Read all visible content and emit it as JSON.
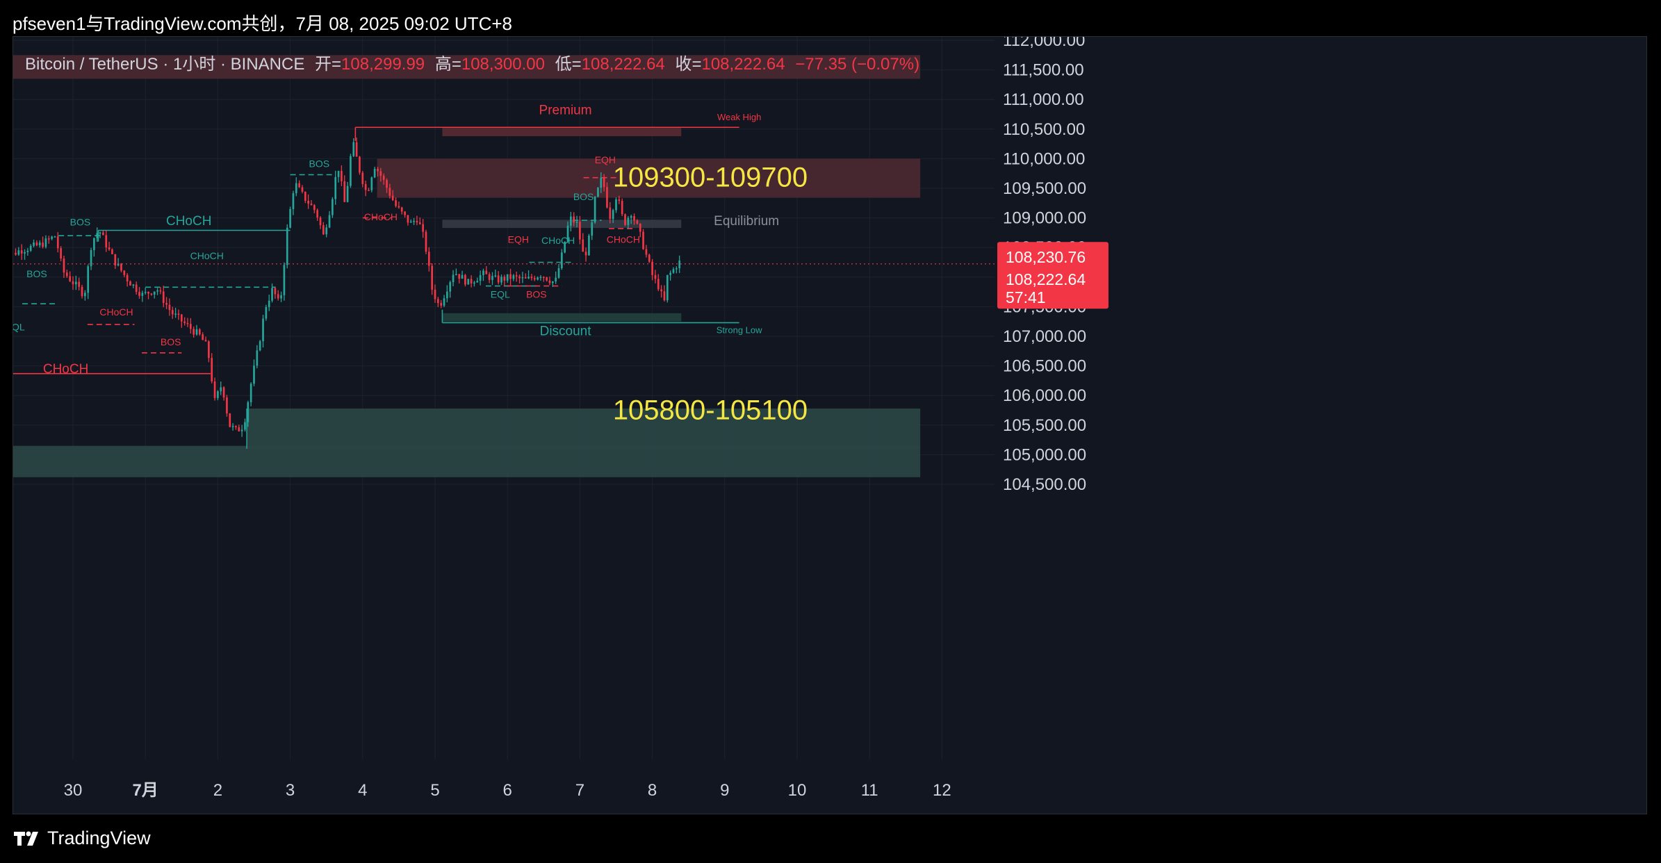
{
  "header": {
    "title": "pfseven1与TradingView.com共创，7月 08, 2025 09:02 UTC+8"
  },
  "legend": {
    "symbol": "Bitcoin / TetherUS · 1小时 · BINANCE",
    "open_label": "开=",
    "open": "108,299.99",
    "high_label": "高=",
    "high": "108,300.00",
    "low_label": "低=",
    "low": "108,222.64",
    "close_label": "收=",
    "close": "108,222.64",
    "change": "−77.35 (−0.07%)"
  },
  "footer": {
    "brand": "TradingView"
  },
  "colors": {
    "up": "#26a69a",
    "down": "#f23645",
    "background": "#121620",
    "supply_zone": "#5a2a33",
    "demand_zone": "#2c4a4a",
    "annotation_yellow": "#f5e642"
  },
  "chart_data": {
    "type": "candlestick",
    "title": "Bitcoin / TetherUS · 1小时 · BINANCE",
    "ylim": [
      104100,
      112350
    ],
    "y_ticks": [
      112000,
      111500,
      111000,
      110500,
      110000,
      109500,
      109000,
      108500,
      108000,
      107500,
      107000,
      106500,
      106000,
      105500,
      105000,
      104500
    ],
    "y_tick_labels": [
      "112,000.00",
      "111,500.00",
      "111,000.00",
      "110,500.00",
      "110,000.00",
      "109,500.00",
      "109,000.00",
      "108,500.00",
      "108,000.00",
      "107,500.00",
      "107,000.00",
      "106,500.00",
      "106,000.00",
      "105,500.00",
      "105,000.00",
      "104,500.00"
    ],
    "x_ticks": [
      {
        "label": "30",
        "day": 30.0
      },
      {
        "label": "7月",
        "day": 31.0
      },
      {
        "label": "2",
        "day": 32.0
      },
      {
        "label": "3",
        "day": 33.0
      },
      {
        "label": "4",
        "day": 34.0
      },
      {
        "label": "5",
        "day": 35.0
      },
      {
        "label": "6",
        "day": 36.0
      },
      {
        "label": "7",
        "day": 37.0
      },
      {
        "label": "8",
        "day": 38.0
      },
      {
        "label": "9",
        "day": 39.0
      },
      {
        "label": "10",
        "day": 40.0
      },
      {
        "label": "11",
        "day": 41.0
      },
      {
        "label": "12",
        "day": 42.0
      }
    ],
    "price_path": [
      [
        29.0,
        108250
      ],
      [
        29.3,
        108450
      ],
      [
        29.6,
        108550
      ],
      [
        29.8,
        108700
      ],
      [
        29.9,
        108100
      ],
      [
        30.2,
        107700
      ],
      [
        30.3,
        108600
      ],
      [
        30.4,
        108800
      ],
      [
        30.6,
        108300
      ],
      [
        30.8,
        107950
      ],
      [
        31.0,
        107700
      ],
      [
        31.2,
        107800
      ],
      [
        31.4,
        107400
      ],
      [
        31.6,
        107200
      ],
      [
        31.8,
        107000
      ],
      [
        31.9,
        106800
      ],
      [
        32.0,
        105900
      ],
      [
        32.1,
        106200
      ],
      [
        32.2,
        105500
      ],
      [
        32.3,
        105400
      ],
      [
        32.4,
        105500
      ],
      [
        32.5,
        106200
      ],
      [
        32.6,
        106800
      ],
      [
        32.7,
        107500
      ],
      [
        32.8,
        107800
      ],
      [
        32.9,
        107500
      ],
      [
        33.0,
        108800
      ],
      [
        33.1,
        109600
      ],
      [
        33.2,
        109400
      ],
      [
        33.4,
        109100
      ],
      [
        33.5,
        108700
      ],
      [
        33.6,
        109200
      ],
      [
        33.7,
        109900
      ],
      [
        33.8,
        109200
      ],
      [
        33.9,
        110300
      ],
      [
        34.0,
        109800
      ],
      [
        34.1,
        109400
      ],
      [
        34.2,
        109900
      ],
      [
        34.3,
        109700
      ],
      [
        34.5,
        109200
      ],
      [
        34.7,
        108900
      ],
      [
        34.8,
        109000
      ],
      [
        34.9,
        108600
      ],
      [
        35.0,
        107800
      ],
      [
        35.1,
        107500
      ],
      [
        35.2,
        107800
      ],
      [
        35.3,
        108100
      ],
      [
        35.5,
        107900
      ],
      [
        35.7,
        108050
      ],
      [
        35.9,
        107950
      ],
      [
        36.1,
        108000
      ],
      [
        36.3,
        107950
      ],
      [
        36.5,
        108050
      ],
      [
        36.7,
        107900
      ],
      [
        36.8,
        108400
      ],
      [
        36.9,
        109000
      ],
      [
        37.0,
        108900
      ],
      [
        37.1,
        108300
      ],
      [
        37.2,
        108800
      ],
      [
        37.25,
        109300
      ],
      [
        37.35,
        109700
      ],
      [
        37.45,
        109000
      ],
      [
        37.55,
        109400
      ],
      [
        37.65,
        108900
      ],
      [
        37.75,
        109100
      ],
      [
        37.85,
        108800
      ],
      [
        37.95,
        108400
      ],
      [
        38.05,
        108000
      ],
      [
        38.15,
        107800
      ],
      [
        38.2,
        107500
      ],
      [
        38.25,
        108000
      ],
      [
        38.35,
        108150
      ],
      [
        38.4,
        108250
      ]
    ],
    "zones": [
      {
        "name": "supply-zone-top",
        "from_day": 28.0,
        "to_day": 41.7,
        "y_low": 111350,
        "y_high": 111750
      },
      {
        "name": "supply-zone-109300-109700",
        "from_day": 34.2,
        "to_day": 41.7,
        "y_low": 109340,
        "y_high": 110000
      },
      {
        "name": "demand-zone-105800-105100",
        "from_day": 32.4,
        "to_day": 41.7,
        "y_low": 105100,
        "y_high": 105780
      },
      {
        "name": "demand-zone-bottom",
        "from_day": 28.0,
        "to_day": 41.7,
        "y_low": 104620,
        "y_high": 105150
      },
      {
        "name": "premium-zone",
        "from_day": 35.1,
        "to_day": 38.4,
        "y_low": 110380,
        "y_high": 110520
      },
      {
        "name": "equilibrium-zone",
        "from_day": 35.1,
        "to_day": 38.4,
        "y_low": 108830,
        "y_high": 108970
      },
      {
        "name": "discount-zone",
        "from_day": 35.1,
        "to_day": 38.4,
        "y_low": 107250,
        "y_high": 107390
      }
    ],
    "annotations": [
      {
        "text": "109300-109700",
        "day": 38.8,
        "price": 109530,
        "color": "yellow"
      },
      {
        "text": "105800-105100",
        "day": 38.8,
        "price": 105600,
        "color": "yellow"
      },
      {
        "text": "Premium",
        "day": 36.8,
        "price": 110750,
        "color": "red"
      },
      {
        "text": "Weak High",
        "day": 39.2,
        "price": 110650,
        "color": "red"
      },
      {
        "text": "Equilibrium",
        "day": 38.85,
        "price": 108880,
        "color": "gray"
      },
      {
        "text": "Discount",
        "day": 36.8,
        "price": 107020,
        "color": "teal"
      },
      {
        "text": "Strong Low",
        "day": 39.2,
        "price": 107050,
        "color": "teal"
      },
      {
        "text": "CHoCH",
        "day": 31.6,
        "price": 108880,
        "color": "teal"
      },
      {
        "text": "CHoCH",
        "day": 29.9,
        "price": 106380,
        "color": "red"
      },
      {
        "text": "CHoCH",
        "day": 31.85,
        "price": 108300,
        "color": "teal"
      },
      {
        "text": "CHoCH",
        "day": 30.6,
        "price": 107350,
        "color": "red"
      },
      {
        "text": "CHoCH",
        "day": 34.25,
        "price": 108960,
        "color": "red"
      },
      {
        "text": "CHoCH",
        "day": 36.7,
        "price": 108560,
        "color": "teal"
      },
      {
        "text": "CHoCH",
        "day": 37.6,
        "price": 108580,
        "color": "red"
      },
      {
        "text": "BOS",
        "day": 30.1,
        "price": 108870,
        "color": "teal"
      },
      {
        "text": "BOS",
        "day": 29.5,
        "price": 108000,
        "color": "teal"
      },
      {
        "text": "BOS",
        "day": 31.35,
        "price": 106850,
        "color": "red"
      },
      {
        "text": "BOS",
        "day": 33.4,
        "price": 109860,
        "color": "teal"
      },
      {
        "text": "BOS",
        "day": 36.4,
        "price": 107650,
        "color": "red"
      },
      {
        "text": "BOS",
        "day": 37.05,
        "price": 109300,
        "color": "teal"
      },
      {
        "text": "EQL",
        "day": 29.2,
        "price": 107100,
        "color": "teal"
      },
      {
        "text": "EQL",
        "day": 35.9,
        "price": 107650,
        "color": "teal"
      },
      {
        "text": "EQH",
        "day": 36.15,
        "price": 108580,
        "color": "red"
      },
      {
        "text": "EQH",
        "day": 37.35,
        "price": 109920,
        "color": "red"
      }
    ],
    "structure_lines": [
      {
        "from_day": 28.0,
        "to_day": 29.0,
        "price": 108230,
        "color": "teal",
        "dash": false
      },
      {
        "from_day": 30.35,
        "to_day": 33.0,
        "price": 108790,
        "color": "teal",
        "dash": false
      },
      {
        "from_day": 28.0,
        "to_day": 31.9,
        "price": 106370,
        "color": "red",
        "dash": false
      },
      {
        "from_day": 31.0,
        "to_day": 32.8,
        "price": 107830,
        "color": "teal",
        "dash": true
      },
      {
        "from_day": 29.8,
        "to_day": 30.4,
        "price": 108700,
        "color": "teal",
        "dash": true
      },
      {
        "from_day": 29.3,
        "to_day": 29.8,
        "price": 107550,
        "color": "teal",
        "dash": true
      },
      {
        "from_day": 30.2,
        "to_day": 30.85,
        "price": 107200,
        "color": "red",
        "dash": true
      },
      {
        "from_day": 30.95,
        "to_day": 31.5,
        "price": 106720,
        "color": "red",
        "dash": true
      },
      {
        "from_day": 33.0,
        "to_day": 33.6,
        "price": 109730,
        "color": "teal",
        "dash": true
      },
      {
        "from_day": 33.9,
        "to_day": 38.4,
        "price": 110530,
        "color": "red",
        "dash": false
      },
      {
        "from_day": 34.0,
        "to_day": 34.4,
        "price": 109000,
        "color": "red",
        "dash": true
      },
      {
        "from_day": 35.1,
        "to_day": 39.2,
        "price": 107230,
        "color": "teal",
        "dash": false
      },
      {
        "from_day": 38.4,
        "to_day": 39.2,
        "price": 110530,
        "color": "red",
        "dash": false
      },
      {
        "from_day": 35.7,
        "to_day": 36.4,
        "price": 107850,
        "color": "teal",
        "dash": true
      },
      {
        "from_day": 36.0,
        "to_day": 36.75,
        "price": 107850,
        "color": "red",
        "dash": true
      },
      {
        "from_day": 36.3,
        "to_day": 36.9,
        "price": 108250,
        "color": "teal",
        "dash": true
      },
      {
        "from_day": 36.9,
        "to_day": 37.3,
        "price": 108960,
        "color": "teal",
        "dash": true
      },
      {
        "from_day": 37.05,
        "to_day": 37.5,
        "price": 109680,
        "color": "red",
        "dash": true
      },
      {
        "from_day": 37.4,
        "to_day": 37.75,
        "price": 108820,
        "color": "red",
        "dash": true
      }
    ],
    "current_price": 108222.64,
    "price_labels": {
      "prev": "108,230.76",
      "current": "108,222.64",
      "countdown": "57:41"
    }
  }
}
